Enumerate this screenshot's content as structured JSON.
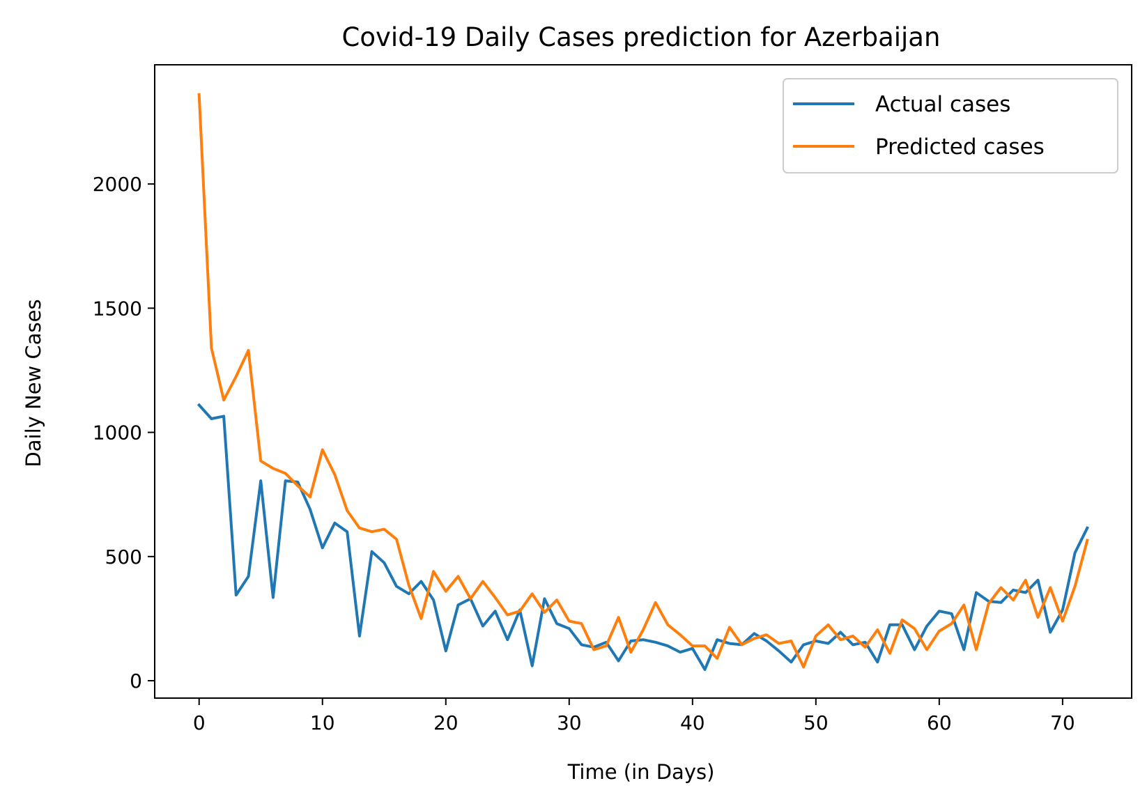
{
  "chart_data": {
    "type": "line",
    "title": "Covid-19 Daily Cases prediction for Azerbaijan",
    "xlabel": "Time (in Days)",
    "ylabel": "Daily New Cases",
    "xlim": [
      -3.6,
      75.6
    ],
    "ylim": [
      -70,
      2480
    ],
    "xticks": [
      0,
      10,
      20,
      30,
      40,
      50,
      60,
      70
    ],
    "yticks": [
      0,
      500,
      1000,
      1500,
      2000
    ],
    "grid": false,
    "legend_position": "top-right",
    "series": [
      {
        "name": "Actual cases",
        "color": "#1f77b4",
        "x": [
          0,
          1,
          2,
          3,
          4,
          5,
          6,
          7,
          8,
          9,
          10,
          11,
          12,
          13,
          14,
          15,
          16,
          17,
          18,
          19,
          20,
          21,
          22,
          23,
          24,
          25,
          26,
          27,
          28,
          29,
          30,
          31,
          32,
          33,
          34,
          35,
          36,
          37,
          38,
          39,
          40,
          41,
          42,
          43,
          44,
          45,
          46,
          47,
          48,
          49,
          50,
          51,
          52,
          53,
          54,
          55,
          56,
          57,
          58,
          59,
          60,
          61,
          62,
          63,
          64,
          65,
          66,
          67,
          68,
          69,
          70,
          71,
          72
        ],
        "values": [
          1110,
          1055,
          1065,
          345,
          420,
          805,
          335,
          805,
          800,
          690,
          535,
          635,
          600,
          180,
          520,
          475,
          380,
          350,
          400,
          325,
          120,
          305,
          330,
          220,
          280,
          165,
          285,
          60,
          330,
          230,
          210,
          145,
          135,
          155,
          80,
          160,
          165,
          155,
          140,
          115,
          130,
          45,
          165,
          150,
          145,
          190,
          160,
          120,
          75,
          145,
          160,
          150,
          195,
          145,
          155,
          75,
          225,
          225,
          125,
          220,
          280,
          270,
          125,
          355,
          320,
          315,
          365,
          355,
          405,
          195,
          285,
          515,
          615
        ]
      },
      {
        "name": "Predicted cases",
        "color": "#ff7f0e",
        "x": [
          0,
          1,
          2,
          3,
          4,
          5,
          6,
          7,
          8,
          9,
          10,
          11,
          12,
          13,
          14,
          15,
          16,
          17,
          18,
          19,
          20,
          21,
          22,
          23,
          24,
          25,
          26,
          27,
          28,
          29,
          30,
          31,
          32,
          33,
          34,
          35,
          36,
          37,
          38,
          39,
          40,
          41,
          42,
          43,
          44,
          45,
          46,
          47,
          48,
          49,
          50,
          51,
          52,
          53,
          54,
          55,
          56,
          57,
          58,
          59,
          60,
          61,
          62,
          63,
          64,
          65,
          66,
          67,
          68,
          69,
          70,
          71,
          72
        ],
        "values": [
          2360,
          1340,
          1130,
          1225,
          1330,
          885,
          855,
          835,
          785,
          740,
          930,
          830,
          685,
          615,
          600,
          610,
          570,
          385,
          250,
          440,
          360,
          420,
          330,
          400,
          335,
          265,
          280,
          350,
          275,
          325,
          240,
          230,
          125,
          140,
          255,
          115,
          205,
          315,
          225,
          185,
          140,
          140,
          90,
          215,
          145,
          170,
          185,
          150,
          160,
          55,
          180,
          225,
          165,
          180,
          135,
          205,
          110,
          245,
          210,
          125,
          200,
          230,
          305,
          125,
          310,
          375,
          325,
          405,
          255,
          375,
          240,
          380,
          565
        ]
      }
    ]
  }
}
